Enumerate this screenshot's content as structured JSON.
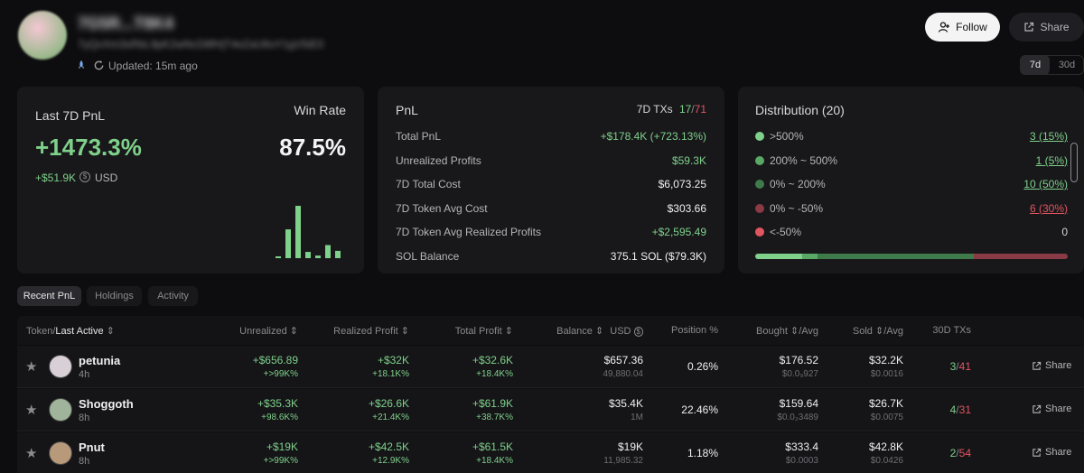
{
  "profile": {
    "name": "7G5R...T8K4",
    "address": "7yQvXm3sRbL9pK2wNcD8fHjT4eZaU6oY1gV5iE0",
    "updated": "Updated: 15m ago"
  },
  "header": {
    "follow": "Follow",
    "share": "Share",
    "range": [
      "7d",
      "30d"
    ]
  },
  "card1": {
    "title": "Last 7D PnL",
    "pnl_pct": "+1473.3%",
    "pnl_usd": "+$51.9K",
    "currency": "USD",
    "winrate_label": "Win Rate",
    "winrate": "87.5%",
    "bars": [
      0.02,
      0.55,
      1.0,
      0.12,
      0.05,
      0.25,
      0.14
    ]
  },
  "card2": {
    "title": "PnL",
    "tx_label": "7D TXs",
    "tx_win": "17",
    "tx_total": "71",
    "rows": [
      {
        "label": "Total PnL",
        "value": "+$178.4K (+723.13%)",
        "tone": "g"
      },
      {
        "label": "Unrealized Profits",
        "value": "$59.3K",
        "tone": "g"
      },
      {
        "label": "7D Total Cost",
        "value": "$6,073.25",
        "tone": ""
      },
      {
        "label": "7D Token Avg Cost",
        "value": "$303.66",
        "tone": ""
      },
      {
        "label": "7D Token Avg Realized Profits",
        "value": "+$2,595.49",
        "tone": "g"
      },
      {
        "label": "SOL Balance",
        "value": "375.1 SOL ($79.3K)",
        "tone": ""
      }
    ]
  },
  "card3": {
    "title": "Distribution (20)",
    "rows": [
      {
        "label": ">500%",
        "value": "3 (15%)",
        "color": "#7fd08a",
        "tone": "g"
      },
      {
        "label": "200% ~ 500%",
        "value": "1 (5%)",
        "color": "#5aa866",
        "tone": "g"
      },
      {
        "label": "0% ~ 200%",
        "value": "10 (50%)",
        "color": "#3f7a4a",
        "tone": "g"
      },
      {
        "label": "0% ~ -50%",
        "value": "6 (30%)",
        "color": "#8a3a44",
        "tone": "r"
      },
      {
        "label": "<-50%",
        "value": "0",
        "color": "#e0555f",
        "tone": ""
      }
    ],
    "bar_segments": [
      0.15,
      0.05,
      0.5,
      0.3
    ]
  },
  "tabs": [
    "Recent PnL",
    "Holdings",
    "Activity"
  ],
  "table": {
    "headers": {
      "token": "Token/",
      "last_active": "Last Active",
      "unrealized": "Unrealized",
      "realized": "Realized Profit",
      "total": "Total Profit",
      "balance": "Balance",
      "usd": "USD",
      "position": "Position %",
      "bought": "Bought",
      "bought_avg": "/Avg",
      "sold": "Sold",
      "sold_avg": "/Avg",
      "txs": "30D TXs"
    },
    "rows": [
      {
        "name": "petunia",
        "time": "4h",
        "unreal": "+$656.89",
        "unreal_pct": "+>99K%",
        "real": "+$32K",
        "real_pct": "+18.1K%",
        "total": "+$32.6K",
        "total_pct": "+18.4K%",
        "bal": "$657.36",
        "bal_amt": "49,880.04",
        "pos": "0.26%",
        "bought": "$176.52",
        "bought_avg": "$0.0₉927",
        "sold": "$32.2K",
        "sold_avg": "$0.0016",
        "tx_w": "3",
        "tx_t": "41",
        "share": "Share",
        "avatar": "#d9cfd6"
      },
      {
        "name": "Shoggoth",
        "time": "8h",
        "unreal": "+$35.3K",
        "unreal_pct": "+98.6K%",
        "real": "+$26.6K",
        "real_pct": "+21.4K%",
        "total": "+$61.9K",
        "total_pct": "+38.7K%",
        "bal": "$35.4K",
        "bal_amt": "1M",
        "pos": "22.46%",
        "bought": "$159.64",
        "bought_avg": "$0.0₂3489",
        "sold": "$26.7K",
        "sold_avg": "$0.0075",
        "tx_w": "4",
        "tx_t": "31",
        "share": "Share",
        "avatar": "#9fb49a"
      },
      {
        "name": "Pnut",
        "time": "8h",
        "unreal": "+$19K",
        "unreal_pct": "+>99K%",
        "real": "+$42.5K",
        "real_pct": "+12.9K%",
        "total": "+$61.5K",
        "total_pct": "+18.4K%",
        "bal": "$19K",
        "bal_amt": "11,985.32",
        "pos": "1.18%",
        "bought": "$333.4",
        "bought_avg": "$0.0003",
        "sold": "$42.8K",
        "sold_avg": "$0.0426",
        "tx_w": "2",
        "tx_t": "54",
        "share": "Share",
        "avatar": "#b89a7a"
      }
    ]
  }
}
